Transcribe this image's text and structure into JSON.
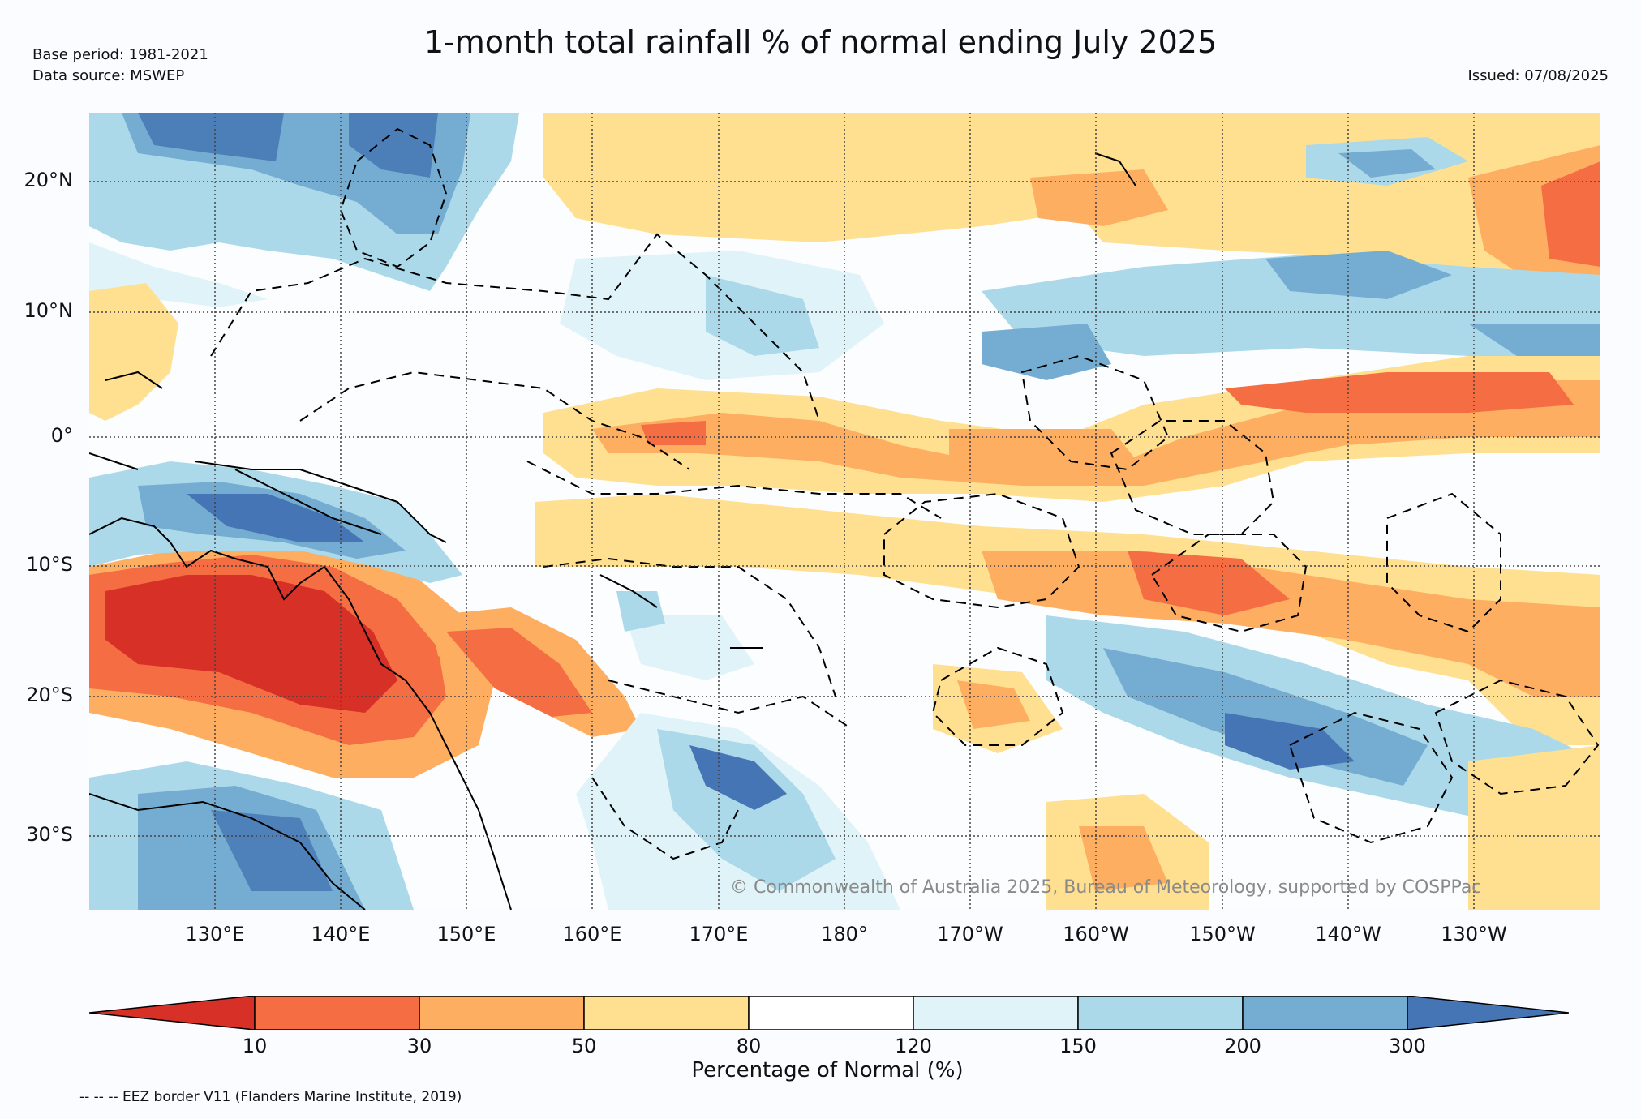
{
  "header": {
    "title": "1-month total rainfall % of normal ending July 2025",
    "base_period": "Base period: 1981-2021",
    "data_source": "Data source: MSWEP",
    "issued": "Issued: 07/08/2025"
  },
  "map": {
    "lat_labels": [
      "20°N",
      "10°N",
      "0°",
      "10°S",
      "20°S",
      "30°S"
    ],
    "lon_labels": [
      "130°E",
      "140°E",
      "150°E",
      "160°E",
      "170°E",
      "180°",
      "170°W",
      "160°W",
      "150°W",
      "140°W",
      "130°W"
    ],
    "copyright": "© Commonwealth of Australia 2025, Bureau of Meteorology, supported by COSPPac",
    "extent": {
      "lon_min": 120,
      "lon_max": 240,
      "lat_min": -36,
      "lat_max": 25
    }
  },
  "colorbar": {
    "label": "Percentage of Normal (%)",
    "ticks": [
      "10",
      "30",
      "50",
      "80",
      "120",
      "150",
      "200",
      "300"
    ],
    "colors": [
      "#d73027",
      "#f46d43",
      "#fdae61",
      "#fee090",
      "#ffffff",
      "#e0f3f8",
      "#abd9e9",
      "#74add1",
      "#4575b4"
    ]
  },
  "footer": {
    "eez_note": "-- -- -- EEZ border V11 (Flanders Marine Institute, 2019)"
  }
}
